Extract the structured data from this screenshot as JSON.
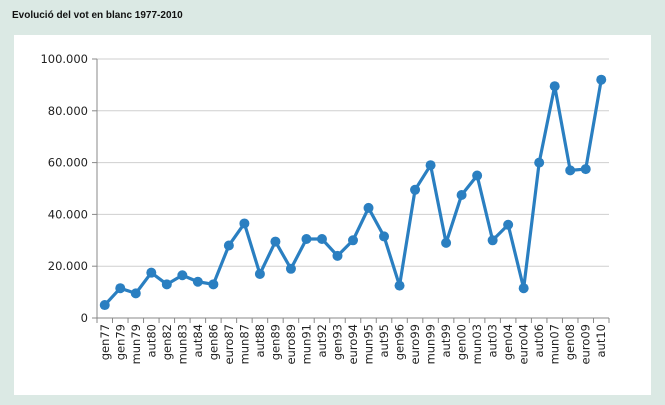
{
  "title": "Evolució del vot en blanc 1977-2010",
  "chart_data": {
    "type": "line",
    "title": "Evolució del vot en blanc 1977-2010",
    "xlabel": "",
    "ylabel": "",
    "ylim": [
      0,
      100000
    ],
    "yticks": [
      0,
      20000,
      40000,
      60000,
      80000,
      100000
    ],
    "ytick_labels": [
      "0",
      "20.000",
      "40.000",
      "60.000",
      "80.000",
      "100.000"
    ],
    "grid": true,
    "legend": "none",
    "color": "#2a7fc1",
    "categories": [
      "gen77",
      "gen79",
      "mun79",
      "aut80",
      "gen82",
      "mun83",
      "aut84",
      "gen86",
      "euro87",
      "mun87",
      "aut88",
      "gen89",
      "euro89",
      "mun91",
      "aut92",
      "gen93",
      "euro94",
      "mun95",
      "aut95",
      "gen96",
      "euro99",
      "mun99",
      "aut99",
      "gen00",
      "mun03",
      "aut03",
      "gen04",
      "euro04",
      "aut06",
      "mun07",
      "gen08",
      "euro09",
      "aut10"
    ],
    "values": [
      5000,
      11500,
      9500,
      17500,
      13000,
      16500,
      14000,
      13000,
      28000,
      36500,
      17000,
      29500,
      19000,
      30500,
      30500,
      24000,
      30000,
      42500,
      31500,
      12500,
      49500,
      59000,
      29000,
      47500,
      55000,
      30000,
      36000,
      11500,
      60000,
      89500,
      57000,
      57500,
      92000
    ]
  }
}
